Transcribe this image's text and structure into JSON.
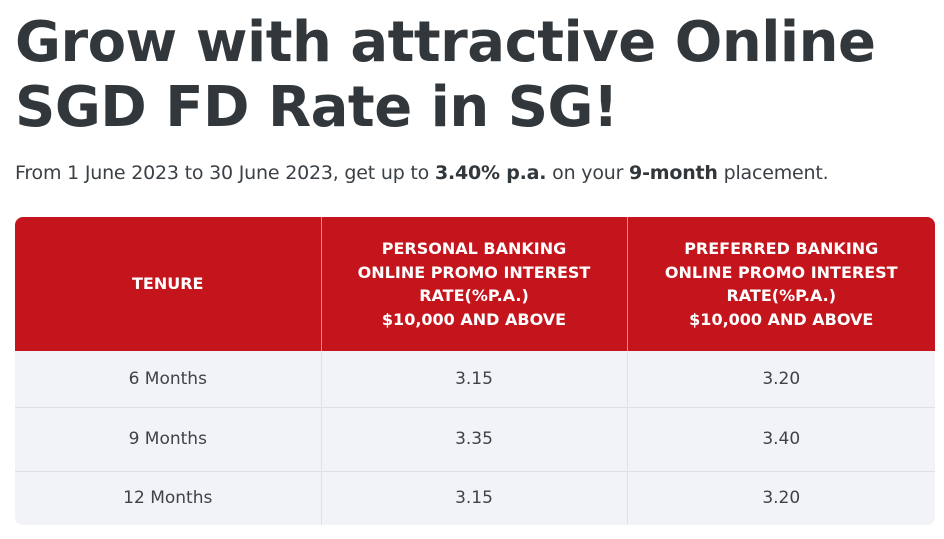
{
  "heading": {
    "line1": "Grow with attractive Online",
    "line2": "SGD FD Rate in SG!"
  },
  "intro": {
    "prefix": "From 1 June 2023 to 30 June 2023, get up to ",
    "rate": "3.40% p.a.",
    "middle": " on your ",
    "tenure": "9-month",
    "suffix": " placement."
  },
  "rates_table": {
    "headers": {
      "tenure": "TENURE",
      "personal": [
        "PERSONAL BANKING",
        "ONLINE PROMO INTEREST",
        "RATE(%P.A.)",
        "$10,000 AND ABOVE"
      ],
      "preferred": [
        "PREFERRED BANKING",
        "ONLINE PROMO INTEREST",
        "RATE(%P.A.)",
        "$10,000 AND ABOVE"
      ]
    },
    "rows": [
      {
        "tenure": "6 Months",
        "personal": "3.15",
        "preferred": "3.20"
      },
      {
        "tenure": "9 Months",
        "personal": "3.35",
        "preferred": "3.40"
      },
      {
        "tenure": "12 Months",
        "personal": "3.15",
        "preferred": "3.20"
      }
    ]
  },
  "colors": {
    "header_bg": "#c4151c",
    "row_bg": "#f2f3f6",
    "heading_text": "#32373b"
  }
}
